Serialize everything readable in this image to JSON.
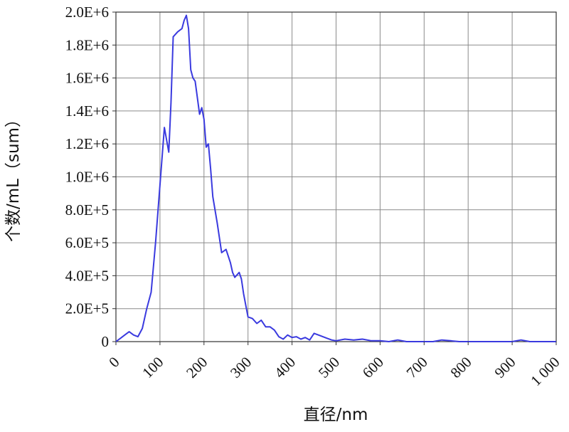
{
  "chart_data": {
    "type": "line",
    "xlabel": "直径/nm",
    "ylabel": "个数/mL（sum）",
    "xlim": [
      0,
      1000
    ],
    "ylim": [
      0,
      2000000
    ],
    "grid": true,
    "x_ticks": [
      0,
      100,
      200,
      300,
      400,
      500,
      600,
      700,
      800,
      900,
      1000
    ],
    "x_tick_labels": [
      "0",
      "100",
      "200",
      "300",
      "400",
      "500",
      "600",
      "700",
      "800",
      "900",
      "1 000"
    ],
    "y_ticks": [
      0,
      200000,
      400000,
      600000,
      800000,
      1000000,
      1200000,
      1400000,
      1600000,
      1800000,
      2000000
    ],
    "y_tick_labels": [
      "0",
      "2.0E+5",
      "4.0E+5",
      "6.0E+5",
      "8.0E+5",
      "1.0E+6",
      "1.2E+6",
      "1.4E+6",
      "1.6E+6",
      "1.8E+6",
      "2.0E+6"
    ],
    "line_color": "#3a3adf",
    "series": [
      {
        "x": [
          0,
          10,
          20,
          30,
          40,
          50,
          60,
          70,
          80,
          90,
          100,
          110,
          120,
          125,
          130,
          140,
          150,
          155,
          160,
          165,
          170,
          175,
          180,
          190,
          195,
          200,
          205,
          210,
          215,
          220,
          230,
          240,
          250,
          260,
          265,
          270,
          280,
          285,
          290,
          300,
          310,
          320,
          330,
          340,
          350,
          360,
          370,
          380,
          390,
          400,
          410,
          420,
          430,
          440,
          450,
          460,
          470,
          480,
          490,
          500,
          520,
          540,
          560,
          580,
          600,
          620,
          640,
          660,
          680,
          700,
          720,
          740,
          760,
          780,
          800,
          820,
          840,
          860,
          880,
          900,
          910,
          920,
          940,
          960,
          980,
          1000
        ],
        "y": [
          0,
          20000,
          40000,
          60000,
          40000,
          30000,
          80000,
          200000,
          300000,
          600000,
          950000,
          1300000,
          1150000,
          1450000,
          1850000,
          1880000,
          1900000,
          1950000,
          1980000,
          1900000,
          1650000,
          1600000,
          1580000,
          1380000,
          1420000,
          1350000,
          1180000,
          1200000,
          1050000,
          880000,
          720000,
          540000,
          560000,
          480000,
          420000,
          390000,
          420000,
          380000,
          290000,
          150000,
          140000,
          110000,
          130000,
          90000,
          90000,
          70000,
          30000,
          15000,
          40000,
          25000,
          30000,
          15000,
          25000,
          10000,
          50000,
          40000,
          30000,
          20000,
          10000,
          5000,
          15000,
          10000,
          15000,
          5000,
          5000,
          0,
          10000,
          0,
          0,
          0,
          0,
          10000,
          5000,
          0,
          0,
          0,
          0,
          0,
          0,
          0,
          5000,
          10000,
          0,
          0,
          0,
          0
        ]
      }
    ]
  }
}
